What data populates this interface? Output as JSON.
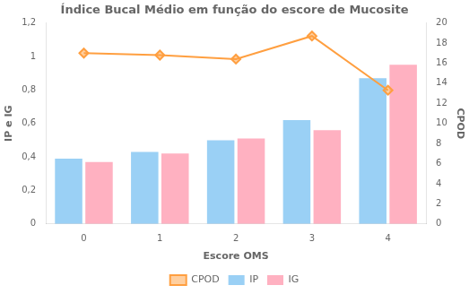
{
  "chart_data": {
    "type": "bar",
    "title": "Índice Bucal Médio em função do escore de Mucosite",
    "x_label": "Escore OMS",
    "y_label": "IP e IG",
    "y2_label": "CPOD",
    "categories": [
      0,
      1,
      2,
      3,
      4
    ],
    "series": [
      {
        "name": "IP",
        "type": "bar",
        "values": [
          0.39,
          0.43,
          0.5,
          0.62,
          0.87
        ]
      },
      {
        "name": "IG",
        "type": "bar",
        "values": [
          0.37,
          0.42,
          0.51,
          0.56,
          0.95
        ]
      },
      {
        "name": "CPOD",
        "type": "line",
        "axis": "y2",
        "marker": "diamond",
        "values": [
          17.0,
          16.8,
          16.4,
          18.7,
          13.3
        ]
      }
    ],
    "ylim": [
      0,
      1.2
    ],
    "yticks": [
      0,
      {
        "value": 0.2,
        "label": "0,2"
      },
      {
        "value": 0.4,
        "label": "0,4"
      },
      {
        "value": 0.6,
        "label": "0,6"
      },
      {
        "value": 0.8,
        "label": "0,8"
      },
      1,
      {
        "value": 1.2,
        "label": "1,2"
      }
    ],
    "y2lim": [
      0,
      20
    ],
    "y2ticks": [
      0,
      2,
      4,
      6,
      8,
      10,
      12,
      14,
      16,
      18,
      20
    ],
    "grid": false,
    "legend": "bottom"
  }
}
